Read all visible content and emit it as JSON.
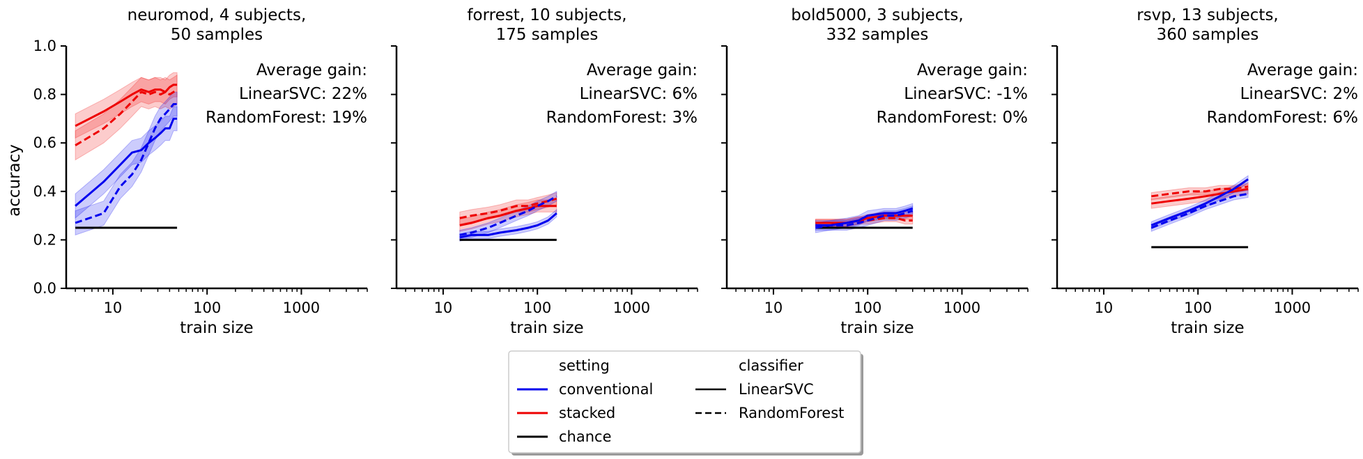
{
  "chart_data": {
    "type": "line",
    "shared": {
      "xlabel": "train size",
      "ylabel": "accuracy",
      "xscale": "log",
      "xlim": [
        3.2,
        5000
      ],
      "ylim": [
        0,
        1
      ],
      "xticks": [
        10,
        100,
        1000
      ],
      "xtick_labels": [
        "10",
        "100",
        "1000"
      ],
      "yticks": [
        0,
        0.2,
        0.4,
        0.6,
        0.8,
        1.0
      ],
      "ytick_labels": [
        "0.0",
        "0.2",
        "0.4",
        "0.6",
        "0.8",
        "1.0"
      ],
      "grid": false
    },
    "colors": {
      "conventional": "#0000ee",
      "stacked": "#ee0000",
      "chance": "#000000"
    },
    "legend": {
      "placement": "bottom-center",
      "setting_title": "setting",
      "classifier_title": "classifier",
      "settings": [
        {
          "key": "conventional",
          "label": "conventional"
        },
        {
          "key": "stacked",
          "label": "stacked"
        },
        {
          "key": "chance",
          "label": "chance"
        }
      ],
      "classifiers": [
        {
          "key": "LinearSVC",
          "label": "LinearSVC",
          "dash": "solid"
        },
        {
          "key": "RandomForest",
          "label": "RandomForest",
          "dash": "dashed"
        }
      ]
    },
    "panels": [
      {
        "title_line1": "neuromod, 4 subjects,",
        "title_line2": "50 samples",
        "gain_title": "Average gain:",
        "gain_svc": "LinearSVC: 22%",
        "gain_rf": "RandomForest: 19%",
        "chance": {
          "x": [
            4,
            48
          ],
          "y": 0.25
        },
        "series": [
          {
            "setting": "stacked",
            "classifier": "LinearSVC",
            "x": [
              4,
              8,
              12,
              16,
              20,
              24,
              28,
              32,
              36,
              40,
              44,
              48
            ],
            "y": [
              0.67,
              0.73,
              0.77,
              0.8,
              0.82,
              0.81,
              0.82,
              0.82,
              0.81,
              0.83,
              0.84,
              0.84
            ],
            "band": 0.05
          },
          {
            "setting": "stacked",
            "classifier": "RandomForest",
            "x": [
              4,
              8,
              12,
              16,
              20,
              24,
              28,
              32,
              36,
              40,
              44,
              48
            ],
            "y": [
              0.59,
              0.66,
              0.72,
              0.77,
              0.81,
              0.8,
              0.81,
              0.8,
              0.81,
              0.8,
              0.81,
              0.82
            ],
            "band": 0.06
          },
          {
            "setting": "conventional",
            "classifier": "LinearSVC",
            "x": [
              4,
              8,
              12,
              16,
              20,
              24,
              28,
              32,
              36,
              40,
              44,
              48
            ],
            "y": [
              0.34,
              0.44,
              0.51,
              0.56,
              0.57,
              0.6,
              0.62,
              0.64,
              0.66,
              0.66,
              0.7,
              0.7
            ],
            "band": 0.05
          },
          {
            "setting": "conventional",
            "classifier": "RandomForest",
            "x": [
              4,
              8,
              12,
              16,
              20,
              24,
              28,
              32,
              36,
              40,
              44,
              48
            ],
            "y": [
              0.27,
              0.31,
              0.42,
              0.47,
              0.53,
              0.6,
              0.66,
              0.7,
              0.72,
              0.74,
              0.76,
              0.76
            ],
            "band": 0.05
          }
        ]
      },
      {
        "title_line1": "forrest, 10 subjects,",
        "title_line2": "175 samples",
        "gain_title": "Average gain:",
        "gain_svc": "LinearSVC: 6%",
        "gain_rf": "RandomForest: 3%",
        "chance": {
          "x": [
            15,
            160
          ],
          "y": 0.2
        },
        "series": [
          {
            "setting": "stacked",
            "classifier": "LinearSVC",
            "x": [
              15,
              20,
              30,
              40,
              60,
              80,
              100,
              130,
              160
            ],
            "y": [
              0.26,
              0.27,
              0.29,
              0.3,
              0.32,
              0.33,
              0.34,
              0.34,
              0.34
            ],
            "band": 0.025
          },
          {
            "setting": "stacked",
            "classifier": "RandomForest",
            "x": [
              15,
              20,
              30,
              40,
              60,
              80,
              100,
              130,
              160
            ],
            "y": [
              0.29,
              0.3,
              0.31,
              0.32,
              0.34,
              0.34,
              0.35,
              0.36,
              0.37
            ],
            "band": 0.025
          },
          {
            "setting": "conventional",
            "classifier": "LinearSVC",
            "x": [
              15,
              20,
              30,
              40,
              60,
              80,
              100,
              130,
              160
            ],
            "y": [
              0.21,
              0.22,
              0.22,
              0.23,
              0.24,
              0.25,
              0.26,
              0.28,
              0.31
            ],
            "band": 0.015
          },
          {
            "setting": "conventional",
            "classifier": "RandomForest",
            "x": [
              15,
              20,
              30,
              40,
              60,
              80,
              100,
              130,
              160
            ],
            "y": [
              0.22,
              0.23,
              0.25,
              0.27,
              0.3,
              0.32,
              0.34,
              0.36,
              0.38
            ],
            "band": 0.02
          }
        ]
      },
      {
        "title_line1": "bold5000, 3 subjects,",
        "title_line2": "332 samples",
        "gain_title": "Average gain:",
        "gain_svc": "LinearSVC: -1%",
        "gain_rf": "RandomForest: 0%",
        "chance": {
          "x": [
            28,
            300
          ],
          "y": 0.25
        },
        "series": [
          {
            "setting": "stacked",
            "classifier": "LinearSVC",
            "x": [
              28,
              40,
              60,
              80,
              100,
              150,
              200,
              250,
              300
            ],
            "y": [
              0.27,
              0.27,
              0.27,
              0.28,
              0.29,
              0.3,
              0.3,
              0.3,
              0.3
            ],
            "band": 0.015
          },
          {
            "setting": "stacked",
            "classifier": "RandomForest",
            "x": [
              28,
              40,
              60,
              80,
              100,
              150,
              200,
              250,
              300
            ],
            "y": [
              0.27,
              0.27,
              0.27,
              0.28,
              0.28,
              0.29,
              0.29,
              0.28,
              0.28
            ],
            "band": 0.015
          },
          {
            "setting": "conventional",
            "classifier": "LinearSVC",
            "x": [
              28,
              40,
              60,
              80,
              100,
              150,
              200,
              250,
              300
            ],
            "y": [
              0.26,
              0.26,
              0.27,
              0.28,
              0.3,
              0.31,
              0.31,
              0.32,
              0.33
            ],
            "band": 0.02
          },
          {
            "setting": "conventional",
            "classifier": "RandomForest",
            "x": [
              28,
              40,
              60,
              80,
              100,
              150,
              200,
              250,
              300
            ],
            "y": [
              0.25,
              0.26,
              0.26,
              0.27,
              0.28,
              0.3,
              0.3,
              0.31,
              0.32
            ],
            "band": 0.02
          }
        ]
      },
      {
        "title_line1": "rsvp, 13 subjects,",
        "title_line2": "360 samples",
        "gain_title": "Average gain:",
        "gain_svc": "LinearSVC: 2%",
        "gain_rf": "RandomForest: 6%",
        "chance": {
          "x": [
            32,
            340
          ],
          "y": 0.17
        },
        "series": [
          {
            "setting": "stacked",
            "classifier": "LinearSVC",
            "x": [
              32,
              50,
              80,
              120,
              170,
              240,
              340
            ],
            "y": [
              0.35,
              0.36,
              0.37,
              0.38,
              0.39,
              0.4,
              0.41
            ],
            "band": 0.02
          },
          {
            "setting": "stacked",
            "classifier": "RandomForest",
            "x": [
              32,
              50,
              80,
              120,
              170,
              240,
              340
            ],
            "y": [
              0.38,
              0.39,
              0.4,
              0.4,
              0.41,
              0.41,
              0.42
            ],
            "band": 0.015
          },
          {
            "setting": "conventional",
            "classifier": "LinearSVC",
            "x": [
              32,
              50,
              80,
              120,
              170,
              240,
              340
            ],
            "y": [
              0.26,
              0.29,
              0.32,
              0.35,
              0.38,
              0.41,
              0.45
            ],
            "band": 0.015
          },
          {
            "setting": "conventional",
            "classifier": "RandomForest",
            "x": [
              32,
              50,
              80,
              120,
              170,
              240,
              340
            ],
            "y": [
              0.25,
              0.28,
              0.31,
              0.34,
              0.36,
              0.38,
              0.39
            ],
            "band": 0.015
          }
        ]
      }
    ]
  }
}
